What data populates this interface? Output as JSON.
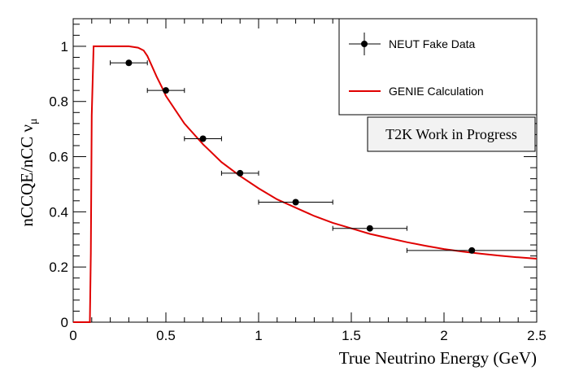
{
  "chart_data": {
    "type": "line",
    "xlabel": "True Neutrino Energy (GeV)",
    "ylabel": "nCCQE/nCC ν",
    "ylabel_sub": "μ",
    "xlim": [
      0,
      2.5
    ],
    "ylim": [
      0,
      1.1
    ],
    "x_ticks": [
      0,
      0.5,
      1,
      1.5,
      2,
      2.5
    ],
    "x_tick_labels": [
      "0",
      "0.5",
      "1",
      "1.5",
      "2",
      "2.5"
    ],
    "y_ticks": [
      0,
      0.2,
      0.4,
      0.6,
      0.8,
      1
    ],
    "y_tick_labels": [
      "0",
      "0.2",
      "0.4",
      "0.6",
      "0.8",
      "1"
    ],
    "grid": false,
    "legend_position": "top-right",
    "annotation": "T2K Work in Progress",
    "series": [
      {
        "name": "NEUT Fake Data",
        "kind": "points-with-errors",
        "color": "#000000",
        "points": [
          {
            "x": 0.3,
            "y": 0.94,
            "xerr": 0.1
          },
          {
            "x": 0.5,
            "y": 0.84,
            "xerr": 0.1
          },
          {
            "x": 0.7,
            "y": 0.665,
            "xerr": 0.1
          },
          {
            "x": 0.9,
            "y": 0.54,
            "xerr": 0.1
          },
          {
            "x": 1.2,
            "y": 0.435,
            "xerr": 0.2
          },
          {
            "x": 1.6,
            "y": 0.34,
            "xerr": 0.2
          },
          {
            "x": 2.15,
            "y": 0.26,
            "xerr": 0.35
          }
        ]
      },
      {
        "name": "GENIE Calculation",
        "kind": "line",
        "color": "#e00000",
        "x": [
          0.0,
          0.09,
          0.095,
          0.1,
          0.11,
          0.2,
          0.3,
          0.35,
          0.38,
          0.4,
          0.42,
          0.45,
          0.48,
          0.5,
          0.55,
          0.6,
          0.7,
          0.8,
          0.9,
          1.0,
          1.1,
          1.2,
          1.3,
          1.4,
          1.5,
          1.6,
          1.7,
          1.8,
          1.9,
          2.0,
          2.1,
          2.2,
          2.3,
          2.4,
          2.5
        ],
        "y": [
          0.0,
          0.0,
          0.25,
          0.75,
          1.0,
          1.0,
          1.0,
          0.995,
          0.985,
          0.965,
          0.935,
          0.89,
          0.85,
          0.82,
          0.77,
          0.72,
          0.645,
          0.58,
          0.53,
          0.485,
          0.445,
          0.415,
          0.385,
          0.36,
          0.34,
          0.32,
          0.305,
          0.29,
          0.277,
          0.265,
          0.256,
          0.248,
          0.241,
          0.235,
          0.23
        ]
      }
    ]
  }
}
